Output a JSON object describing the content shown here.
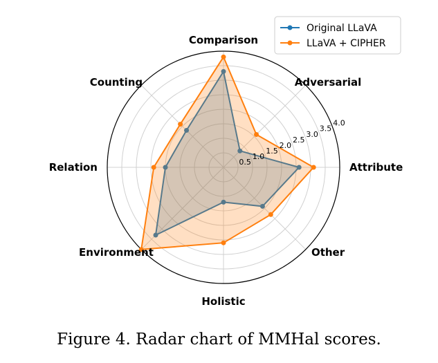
{
  "chart_data": {
    "type": "radar",
    "categories": [
      "Attribute",
      "Adversarial",
      "Comparison",
      "Counting",
      "Relation",
      "Environment",
      "Holistic",
      "Other"
    ],
    "rlim": [
      0,
      4.0
    ],
    "rticks": [
      "0.5",
      "1.0",
      "1.5",
      "2.0",
      "2.5",
      "3.0",
      "3.5",
      "4.0"
    ],
    "grid": true,
    "legend_position": "top-right",
    "series": [
      {
        "name": "Original LLaVA",
        "color": "#1f77b4",
        "values": [
          2.6,
          0.8,
          3.3,
          1.8,
          2.0,
          3.3,
          1.2,
          1.9
        ]
      },
      {
        "name": "LLaVA + CIPHER",
        "color": "#ff7f0e",
        "values": [
          3.1,
          1.6,
          3.8,
          2.1,
          2.4,
          4.0,
          2.6,
          2.3
        ]
      }
    ]
  },
  "caption": "Figure 4. Radar chart of MMHal scores."
}
